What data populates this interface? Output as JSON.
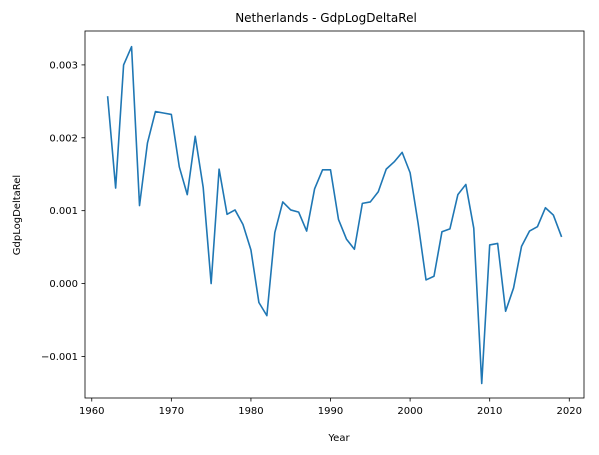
{
  "chart_data": {
    "type": "line",
    "title": "Netherlands - GdpLogDeltaRel",
    "xlabel": "Year",
    "ylabel": "GdpLogDeltaRel",
    "xlim": [
      1959.15,
      2021.85
    ],
    "ylim": [
      -0.00157,
      0.003465
    ],
    "xticks": [
      1960,
      1970,
      1980,
      1990,
      2000,
      2010,
      2020
    ],
    "xtick_labels": [
      "1960",
      "1970",
      "1980",
      "1990",
      "2000",
      "2010",
      "2020"
    ],
    "yticks": [
      -0.001,
      0.0,
      0.001,
      0.002,
      0.003
    ],
    "ytick_labels": [
      "−0.001",
      "0.000",
      "0.001",
      "0.002",
      "0.003"
    ],
    "grid": false,
    "colors": {
      "line": "#1f77b4",
      "axes": "#000000",
      "background": "#ffffff"
    },
    "series": [
      {
        "x": [
          1962,
          1963,
          1964,
          1965,
          1966,
          1967,
          1968,
          1969,
          1970,
          1971,
          1972,
          1973,
          1974,
          1975,
          1976,
          1977,
          1978,
          1979,
          1980,
          1981,
          1982,
          1983,
          1984,
          1985,
          1986,
          1987,
          1988,
          1989,
          1990,
          1991,
          1992,
          1993,
          1994,
          1995,
          1996,
          1997,
          1998,
          1999,
          2000,
          2001,
          2002,
          2003,
          2004,
          2005,
          2006,
          2007,
          2008,
          2009,
          2010,
          2011,
          2012,
          2013,
          2014,
          2015,
          2016,
          2017,
          2018,
          2019
        ],
        "values": [
          0.00256,
          0.00131,
          0.003,
          0.00325,
          0.00107,
          0.00193,
          0.00236,
          0.00234,
          0.00232,
          0.0016,
          0.00122,
          0.00202,
          0.00132,
          0.0,
          0.00157,
          0.00095,
          0.00101,
          0.00081,
          0.00046,
          -0.00026,
          -0.00044,
          0.0007,
          0.00112,
          0.00101,
          0.00098,
          0.00072,
          0.0013,
          0.00156,
          0.00156,
          0.00088,
          0.00061,
          0.00047,
          0.0011,
          0.00112,
          0.00126,
          0.00157,
          0.00167,
          0.0018,
          0.00152,
          0.00083,
          5e-05,
          0.0001,
          0.00071,
          0.00075,
          0.00122,
          0.00136,
          0.00076,
          -0.00137,
          0.00053,
          0.00055,
          -0.00038,
          -6e-05,
          0.00051,
          0.00072,
          0.00078,
          0.00104,
          0.00094,
          0.00065
        ]
      }
    ]
  }
}
